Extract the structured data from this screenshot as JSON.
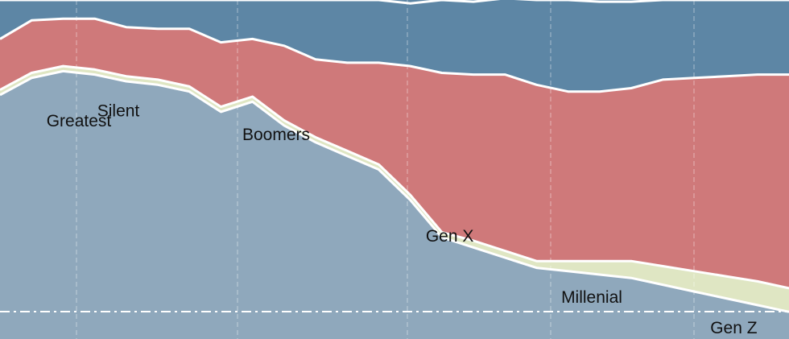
{
  "chart_data": {
    "type": "area",
    "stacked": true,
    "title": "",
    "xlabel": "",
    "ylabel": "",
    "x": [
      0,
      4,
      8,
      12,
      16,
      20,
      24,
      28,
      32,
      36,
      40,
      44,
      48,
      52,
      56,
      60,
      64,
      68,
      72,
      76,
      80,
      84,
      88,
      92,
      96,
      100
    ],
    "ylim": [
      0,
      100
    ],
    "grid": {
      "vertical_dashed": true,
      "horizontal": false
    },
    "reference_line": {
      "style": "dash-dot",
      "color": "#ffffff"
    },
    "series": [
      {
        "name": "Greatest",
        "color": "#8fa8bc",
        "values": [
          72,
          77,
          79,
          78,
          76,
          75,
          73,
          67,
          70,
          63,
          58,
          54,
          50,
          41,
          30,
          27,
          24,
          21,
          20,
          19,
          18,
          16,
          14,
          12,
          10,
          8
        ]
      },
      {
        "name": "Silent",
        "color": "#dfe6c3",
        "values": [
          1.5,
          1.5,
          1.5,
          1.5,
          1.5,
          1.5,
          1.5,
          1.5,
          1.5,
          1.5,
          1.5,
          1.5,
          1.5,
          1.5,
          1.5,
          2,
          2,
          2,
          3,
          4,
          5,
          5.5,
          6,
          6.5,
          7,
          7
        ]
      },
      {
        "name": "Boomers",
        "color": "#cf797a",
        "values": [
          15,
          15.5,
          14,
          15,
          14.5,
          15,
          17,
          19,
          17,
          22,
          23,
          26,
          30,
          38,
          47,
          49,
          52,
          52,
          50,
          50,
          51,
          55,
          57,
          59,
          61,
          63
        ]
      },
      {
        "name": "Gen X",
        "color": "#5d86a5",
        "values": [
          11.5,
          6,
          5.5,
          5.5,
          8,
          8.5,
          8.5,
          12.5,
          11.5,
          13.5,
          17.5,
          18.5,
          18.5,
          18.5,
          21.5,
          21.5,
          22.5,
          25,
          27,
          26.5,
          25.5,
          23.5,
          23,
          22.5,
          22,
          22
        ]
      }
    ],
    "labels": [
      {
        "text": "Greatest",
        "x": 10,
        "y": 64
      },
      {
        "text": "Silent",
        "x": 15,
        "y": 67
      },
      {
        "text": "Boomers",
        "x": 35,
        "y": 60
      },
      {
        "text": "Gen X",
        "x": 57,
        "y": 30
      },
      {
        "text": "Millenial",
        "x": 75,
        "y": 12
      },
      {
        "text": "Gen Z",
        "x": 93,
        "y": 3
      }
    ]
  }
}
